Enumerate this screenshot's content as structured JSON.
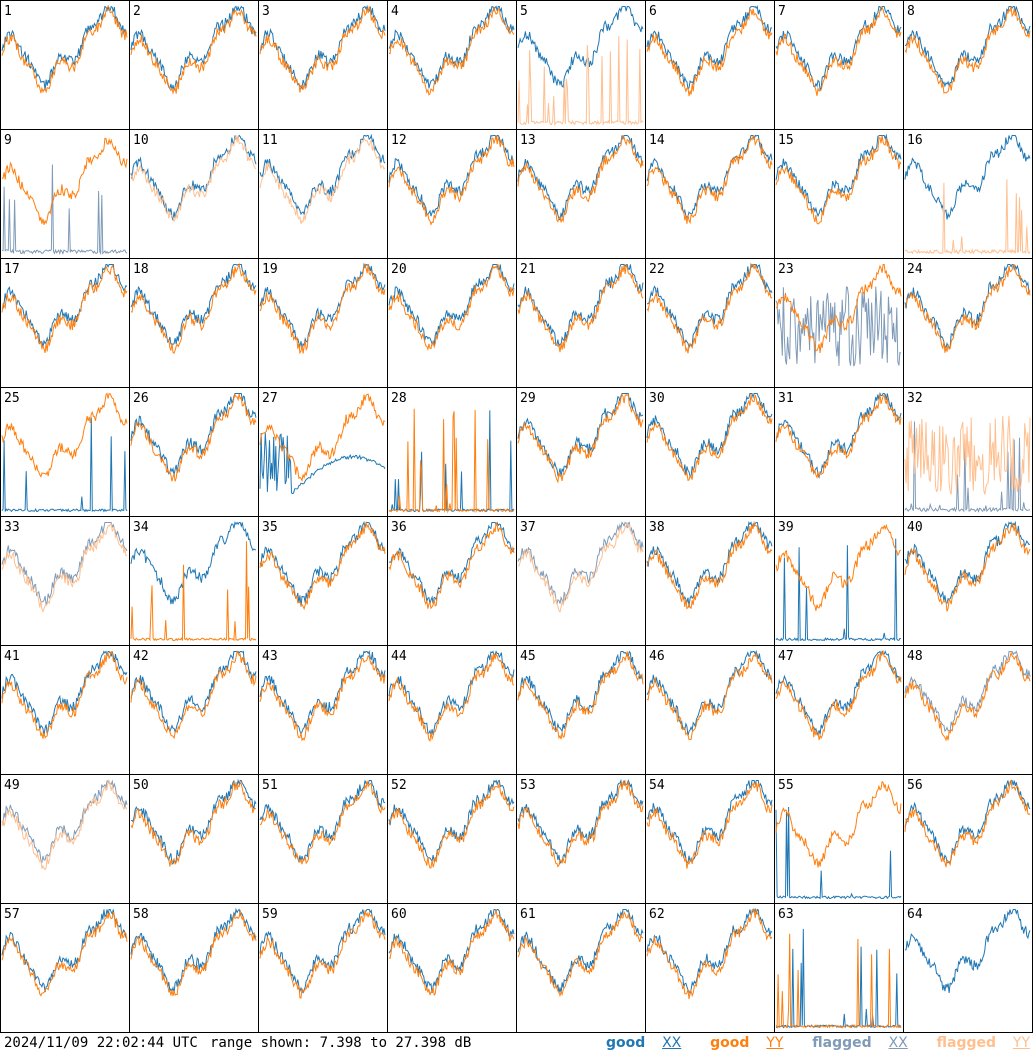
{
  "chart_data": {
    "type": "line",
    "panel_count": 64,
    "panels": [
      "1",
      "2",
      "3",
      "4",
      "5",
      "6",
      "7",
      "8",
      "9",
      "10",
      "11",
      "12",
      "13",
      "14",
      "15",
      "16",
      "17",
      "18",
      "19",
      "20",
      "21",
      "22",
      "23",
      "24",
      "25",
      "26",
      "27",
      "28",
      "29",
      "30",
      "31",
      "32",
      "33",
      "34",
      "35",
      "36",
      "37",
      "38",
      "39",
      "40",
      "41",
      "42",
      "43",
      "44",
      "45",
      "46",
      "47",
      "48",
      "49",
      "50",
      "51",
      "52",
      "53",
      "54",
      "55",
      "56",
      "57",
      "58",
      "59",
      "60",
      "61",
      "62",
      "63",
      "64"
    ],
    "ylim": [
      7.398,
      27.398
    ],
    "series": [
      {
        "name": "good XX",
        "color": "#1f77b4"
      },
      {
        "name": "good YY",
        "color": "#ff7f0e"
      },
      {
        "name": "flagged XX",
        "color": "#7f9bb8"
      },
      {
        "name": "flagged YY",
        "color": "#ffbf8f"
      }
    ],
    "panel_states": {
      "5": {
        "yy": "flagged-spiky"
      },
      "9": {
        "xx": "flagged-spiky"
      },
      "10": {
        "yy": "flagged"
      },
      "11": {
        "yy": "flagged"
      },
      "16": {
        "yy": "flagged-spiky"
      },
      "23": {
        "xx": "flagged-noisy"
      },
      "25": {
        "xx": "spiky"
      },
      "27": {
        "xx": "drift"
      },
      "28": {
        "xx": "spiky",
        "yy": "spiky"
      },
      "32": {
        "xx": "flagged-spiky",
        "yy": "flagged-noisy"
      },
      "33": {
        "xx": "flagged",
        "yy": "flagged"
      },
      "34": {
        "yy": "spiky"
      },
      "37": {
        "xx": "flagged",
        "yy": "flagged"
      },
      "39": {
        "xx": "spiky"
      },
      "48": {
        "xx": "flagged"
      },
      "49": {
        "xx": "flagged",
        "yy": "flagged"
      },
      "55": {
        "xx": "spiky"
      },
      "63": {
        "xx": "spiky",
        "yy": "spiky"
      },
      "64": {
        "yy": "hidden"
      }
    }
  },
  "footer": {
    "timestamp": "2024/11/09 22:02:44 UTC",
    "range": "range shown: 7.398 to 27.398 dB"
  },
  "legend": {
    "good_xx_prefix": "good ",
    "good_xx_pol": "XX",
    "good_yy_prefix": "good ",
    "good_yy_pol": "YY",
    "flagged_xx_prefix": "flagged ",
    "flagged_xx_pol": "XX",
    "flagged_yy_prefix": "flagged ",
    "flagged_yy_pol": "YY"
  }
}
